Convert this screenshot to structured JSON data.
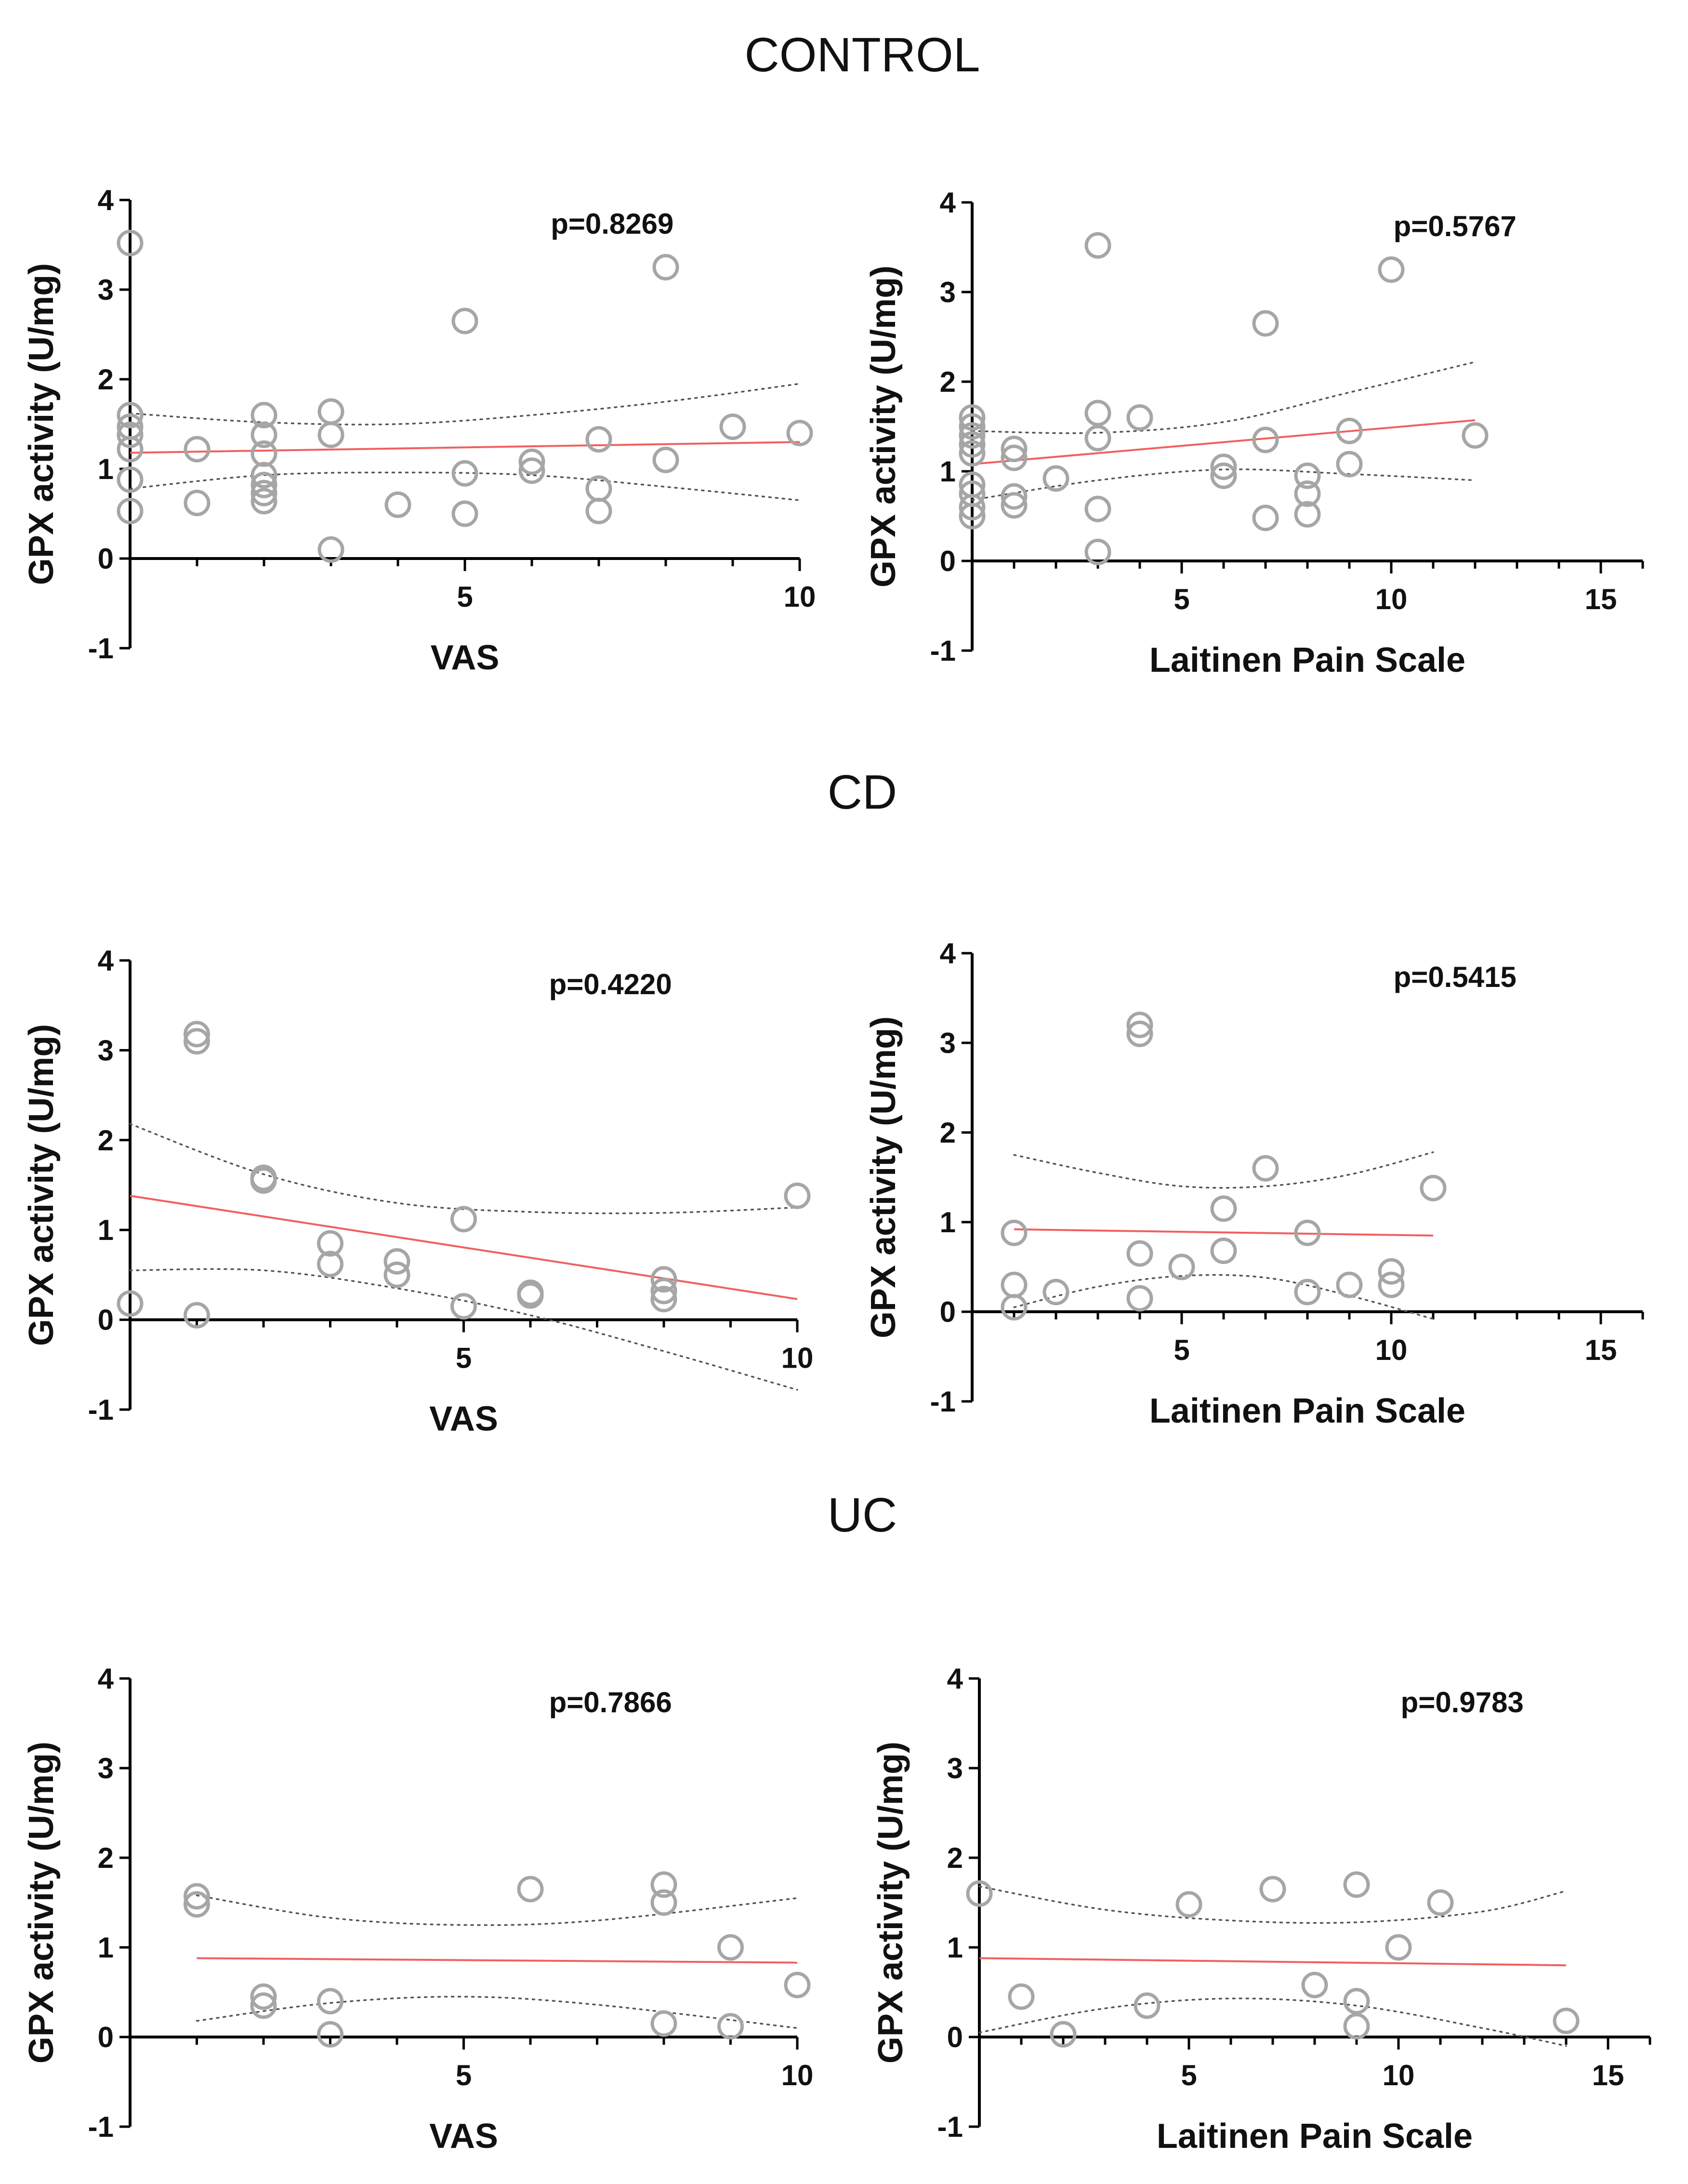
{
  "sections": [
    {
      "title": "CONTROL"
    },
    {
      "title": "CD"
    },
    {
      "title": "UC"
    }
  ],
  "chart_data": [
    {
      "type": "scatter",
      "section": "CONTROL",
      "xlabel": "VAS",
      "ylabel": "GPX activity (U/mg)",
      "xlim": [
        0,
        10
      ],
      "ylim": [
        -1,
        4
      ],
      "xticks": [
        5,
        10
      ],
      "yticks": [
        -1,
        0,
        1,
        2,
        3,
        4
      ],
      "annotation": "p=0.8269",
      "points": [
        [
          0,
          3.52
        ],
        [
          0,
          1.6
        ],
        [
          0,
          1.47
        ],
        [
          0,
          1.38
        ],
        [
          0,
          1.22
        ],
        [
          0,
          0.88
        ],
        [
          0,
          0.53
        ],
        [
          1,
          1.22
        ],
        [
          1,
          0.62
        ],
        [
          2,
          1.6
        ],
        [
          2,
          1.38
        ],
        [
          2,
          1.17
        ],
        [
          2,
          0.93
        ],
        [
          2,
          0.82
        ],
        [
          2,
          0.73
        ],
        [
          2,
          0.64
        ],
        [
          3,
          1.64
        ],
        [
          3,
          1.38
        ],
        [
          3,
          0.1
        ],
        [
          4,
          0.6
        ],
        [
          5,
          2.65
        ],
        [
          5,
          0.95
        ],
        [
          5,
          0.5
        ],
        [
          6,
          1.08
        ],
        [
          6,
          0.98
        ],
        [
          7,
          1.33
        ],
        [
          7,
          0.78
        ],
        [
          7,
          0.53
        ],
        [
          8,
          3.25
        ],
        [
          8,
          1.1
        ],
        [
          9,
          1.47
        ],
        [
          10,
          1.4
        ]
      ],
      "fit": [
        [
          0,
          1.18
        ],
        [
          10,
          1.3
        ]
      ],
      "ci_upper": [
        [
          0,
          1.62
        ],
        [
          2,
          1.52
        ],
        [
          4,
          1.5
        ],
        [
          6,
          1.6
        ],
        [
          8,
          1.75
        ],
        [
          10,
          1.95
        ]
      ],
      "ci_lower": [
        [
          0,
          0.78
        ],
        [
          2,
          0.93
        ],
        [
          4,
          0.96
        ],
        [
          6,
          0.93
        ],
        [
          8,
          0.8
        ],
        [
          10,
          0.65
        ]
      ]
    },
    {
      "type": "scatter",
      "section": "CONTROL",
      "xlabel": "Laitinen Pain Scale",
      "ylabel": "GPX activity (U/mg)",
      "xlim": [
        0,
        16
      ],
      "ylim": [
        -1,
        4
      ],
      "xticks": [
        5,
        10,
        15
      ],
      "yticks": [
        -1,
        0,
        1,
        2,
        3,
        4
      ],
      "annotation": "p=0.5767",
      "points": [
        [
          0,
          1.6
        ],
        [
          0,
          1.5
        ],
        [
          0,
          1.4
        ],
        [
          0,
          1.3
        ],
        [
          0,
          1.2
        ],
        [
          0,
          0.85
        ],
        [
          0,
          0.75
        ],
        [
          0,
          0.6
        ],
        [
          0,
          0.5
        ],
        [
          1,
          1.25
        ],
        [
          1,
          1.15
        ],
        [
          1,
          0.72
        ],
        [
          1,
          0.62
        ],
        [
          2,
          0.92
        ],
        [
          3,
          3.52
        ],
        [
          3,
          1.65
        ],
        [
          3,
          1.37
        ],
        [
          3,
          0.58
        ],
        [
          3,
          0.1
        ],
        [
          4,
          1.6
        ],
        [
          6,
          1.05
        ],
        [
          6,
          0.95
        ],
        [
          7,
          2.65
        ],
        [
          7,
          1.35
        ],
        [
          7,
          0.48
        ],
        [
          8,
          0.95
        ],
        [
          8,
          0.75
        ],
        [
          8,
          0.52
        ],
        [
          9,
          1.45
        ],
        [
          9,
          1.08
        ],
        [
          10,
          3.25
        ],
        [
          12,
          1.4
        ]
      ],
      "fit": [
        [
          0,
          1.08
        ],
        [
          12,
          1.57
        ]
      ],
      "ci_upper": [
        [
          0,
          1.45
        ],
        [
          3,
          1.43
        ],
        [
          6,
          1.55
        ],
        [
          9,
          1.88
        ],
        [
          12,
          2.22
        ]
      ],
      "ci_lower": [
        [
          0,
          0.68
        ],
        [
          3,
          0.9
        ],
        [
          6,
          1.02
        ],
        [
          9,
          0.97
        ],
        [
          12,
          0.9
        ]
      ]
    },
    {
      "type": "scatter",
      "section": "CD",
      "xlabel": "VAS",
      "ylabel": "GPX activity (U/mg)",
      "xlim": [
        0,
        10
      ],
      "ylim": [
        -1,
        4
      ],
      "xticks": [
        5,
        10
      ],
      "yticks": [
        -1,
        0,
        1,
        2,
        3,
        4
      ],
      "annotation": "p=0.4220",
      "points": [
        [
          0,
          0.18
        ],
        [
          1,
          3.18
        ],
        [
          1,
          3.1
        ],
        [
          1,
          0.05
        ],
        [
          2,
          1.58
        ],
        [
          2,
          1.55
        ],
        [
          3,
          0.85
        ],
        [
          3,
          0.62
        ],
        [
          4,
          0.65
        ],
        [
          4,
          0.5
        ],
        [
          5,
          1.12
        ],
        [
          5,
          0.15
        ],
        [
          6,
          0.3
        ],
        [
          6,
          0.27
        ],
        [
          8,
          0.45
        ],
        [
          8,
          0.32
        ],
        [
          8,
          0.23
        ],
        [
          10,
          1.38
        ]
      ],
      "fit": [
        [
          0,
          1.38
        ],
        [
          10,
          0.23
        ]
      ],
      "ci_upper": [
        [
          0,
          2.18
        ],
        [
          2,
          1.62
        ],
        [
          4,
          1.3
        ],
        [
          6,
          1.2
        ],
        [
          8,
          1.19
        ],
        [
          10,
          1.25
        ]
      ],
      "ci_lower": [
        [
          0,
          0.55
        ],
        [
          2,
          0.55
        ],
        [
          4,
          0.35
        ],
        [
          6,
          0.05
        ],
        [
          8,
          -0.35
        ],
        [
          10,
          -0.78
        ]
      ]
    },
    {
      "type": "scatter",
      "section": "CD",
      "xlabel": "Laitinen Pain Scale",
      "ylabel": "GPX activity (U/mg)",
      "xlim": [
        0,
        16
      ],
      "ylim": [
        -1,
        4
      ],
      "xticks": [
        5,
        10,
        15
      ],
      "yticks": [
        -1,
        0,
        1,
        2,
        3,
        4
      ],
      "annotation": "p=0.5415",
      "points": [
        [
          1,
          0.88
        ],
        [
          1,
          0.3
        ],
        [
          1,
          0.05
        ],
        [
          2,
          0.22
        ],
        [
          4,
          3.2
        ],
        [
          4,
          3.1
        ],
        [
          4,
          0.65
        ],
        [
          4,
          0.15
        ],
        [
          5,
          0.5
        ],
        [
          6,
          1.15
        ],
        [
          6,
          0.68
        ],
        [
          7,
          1.6
        ],
        [
          8,
          0.88
        ],
        [
          8,
          0.22
        ],
        [
          9,
          0.3
        ],
        [
          10,
          0.45
        ],
        [
          10,
          0.3
        ],
        [
          11,
          1.38
        ]
      ],
      "fit": [
        [
          1,
          0.92
        ],
        [
          11,
          0.85
        ]
      ],
      "ci_upper": [
        [
          1,
          1.75
        ],
        [
          3,
          1.55
        ],
        [
          5,
          1.4
        ],
        [
          7,
          1.4
        ],
        [
          9,
          1.53
        ],
        [
          11,
          1.78
        ]
      ],
      "ci_lower": [
        [
          1,
          0.05
        ],
        [
          3,
          0.28
        ],
        [
          5,
          0.4
        ],
        [
          7,
          0.38
        ],
        [
          9,
          0.18
        ],
        [
          11,
          -0.08
        ]
      ]
    },
    {
      "type": "scatter",
      "section": "UC",
      "xlabel": "VAS",
      "ylabel": "GPX activity (U/mg)",
      "xlim": [
        0,
        10
      ],
      "ylim": [
        -1,
        4
      ],
      "xticks": [
        5,
        10
      ],
      "yticks": [
        -1,
        0,
        1,
        2,
        3,
        4
      ],
      "annotation": "p=0.7866",
      "points": [
        [
          1,
          1.57
        ],
        [
          1,
          1.48
        ],
        [
          2,
          0.45
        ],
        [
          2,
          0.35
        ],
        [
          3,
          0.4
        ],
        [
          3,
          0.03
        ],
        [
          6,
          1.65
        ],
        [
          8,
          1.7
        ],
        [
          8,
          1.5
        ],
        [
          8,
          0.15
        ],
        [
          9,
          1.0
        ],
        [
          9,
          0.12
        ],
        [
          10,
          0.58
        ]
      ],
      "fit": [
        [
          1,
          0.88
        ],
        [
          10,
          0.83
        ]
      ],
      "ci_upper": [
        [
          1,
          1.58
        ],
        [
          3,
          1.33
        ],
        [
          5,
          1.25
        ],
        [
          7,
          1.3
        ],
        [
          10,
          1.55
        ]
      ],
      "ci_lower": [
        [
          1,
          0.18
        ],
        [
          3,
          0.38
        ],
        [
          5,
          0.45
        ],
        [
          7,
          0.36
        ],
        [
          10,
          0.1
        ]
      ]
    },
    {
      "type": "scatter",
      "section": "UC",
      "xlabel": "Laitinen Pain Scale",
      "ylabel": "GPX activity (U/mg)",
      "xlim": [
        0,
        16
      ],
      "ylim": [
        -1,
        4
      ],
      "xticks": [
        5,
        10,
        15
      ],
      "yticks": [
        -1,
        0,
        1,
        2,
        3,
        4
      ],
      "annotation": "p=0.9783",
      "points": [
        [
          0,
          1.6
        ],
        [
          1,
          0.45
        ],
        [
          2,
          0.03
        ],
        [
          4,
          0.35
        ],
        [
          5,
          1.48
        ],
        [
          7,
          1.65
        ],
        [
          8,
          0.58
        ],
        [
          9,
          1.7
        ],
        [
          9,
          0.4
        ],
        [
          9,
          0.12
        ],
        [
          10,
          1.0
        ],
        [
          11,
          1.5
        ],
        [
          14,
          0.18
        ]
      ],
      "fit": [
        [
          0,
          0.88
        ],
        [
          14,
          0.8
        ]
      ],
      "ci_upper": [
        [
          0,
          1.68
        ],
        [
          3,
          1.42
        ],
        [
          6,
          1.3
        ],
        [
          9,
          1.28
        ],
        [
          12,
          1.4
        ],
        [
          14,
          1.63
        ]
      ],
      "ci_lower": [
        [
          0,
          0.05
        ],
        [
          3,
          0.32
        ],
        [
          6,
          0.43
        ],
        [
          9,
          0.35
        ],
        [
          12,
          0.1
        ],
        [
          14,
          -0.1
        ]
      ]
    }
  ]
}
